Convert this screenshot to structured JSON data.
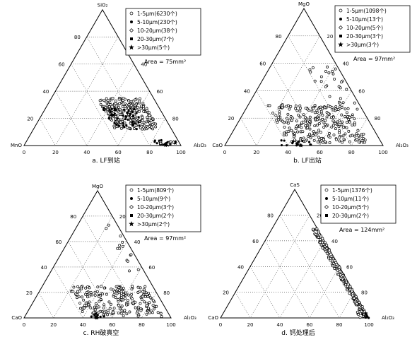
{
  "chart_data": [
    {
      "type": "scatter",
      "subtype": "ternary",
      "caption": "a. LF到站",
      "apex_top": "SiO₂",
      "apex_left": "MnO",
      "apex_right": "Al₂O₃",
      "area_label": "Area = 75mm²",
      "ticks": [
        "0",
        "20",
        "40",
        "60",
        "80",
        "100"
      ],
      "legend": [
        {
          "label": "1-5μm(6230个)",
          "marker": "circle-open"
        },
        {
          "label": "5-10μm(230个)",
          "marker": "circle-filled"
        },
        {
          "label": "10-20μm(38个)",
          "marker": "diamond-open"
        },
        {
          "label": "20-30μm(7个)",
          "marker": "square-filled"
        },
        {
          "label": ">30μm(5个)",
          "marker": "star"
        }
      ],
      "clusters": [
        {
          "marker": "circle-open",
          "n": 260,
          "left": [
            8,
            36
          ],
          "top": [
            12,
            35
          ]
        },
        {
          "marker": "circle-filled",
          "n": 45,
          "left": [
            16,
            36
          ],
          "top": [
            12,
            28
          ]
        },
        {
          "marker": "circle-filled",
          "n": 14,
          "left": [
            1,
            16
          ],
          "top": [
            0,
            4
          ]
        },
        {
          "marker": "star",
          "n": 5,
          "left": [
            2,
            14
          ],
          "top": [
            0,
            2
          ]
        },
        {
          "marker": "diamond-open",
          "n": 8,
          "left": [
            2,
            15
          ],
          "top": [
            0,
            3
          ]
        }
      ]
    },
    {
      "type": "scatter",
      "subtype": "ternary",
      "caption": "b. LF出站",
      "apex_top": "MgO",
      "apex_left": "CaO",
      "apex_right": "Al₂O₃",
      "area_label": "Area = 97mm²",
      "ticks": [
        "0",
        "20",
        "40",
        "60",
        "80",
        "100"
      ],
      "legend": [
        {
          "label": "1-5μm(1098个)",
          "marker": "circle-open"
        },
        {
          "label": "5-10μm(13个)",
          "marker": "circle-filled"
        },
        {
          "label": "10-20μm(5个)",
          "marker": "diamond-open"
        },
        {
          "label": "20-30μm(3个)",
          "marker": "square-filled"
        },
        {
          "label": ">30μm(3个)",
          "marker": "star"
        }
      ],
      "clusters": [
        {
          "marker": "circle-open",
          "n": 260,
          "left": [
            8,
            60
          ],
          "top": [
            2,
            30
          ]
        },
        {
          "marker": "circle-open",
          "n": 30,
          "left": [
            2,
            20
          ],
          "top": [
            25,
            60
          ]
        },
        {
          "marker": "circle-filled",
          "n": 13,
          "left": [
            45,
            65
          ],
          "top": [
            0,
            4
          ]
        },
        {
          "marker": "star",
          "n": 3,
          "left": [
            50,
            60
          ],
          "top": [
            0,
            2
          ]
        }
      ]
    },
    {
      "type": "scatter",
      "subtype": "ternary",
      "caption": "c. RH破真空",
      "apex_top": "MgO",
      "apex_left": "CaO",
      "apex_right": "Al₂O₃",
      "area_label": "Area = 97mm²",
      "ticks": [
        "0",
        "20",
        "40",
        "60",
        "80",
        "100"
      ],
      "legend": [
        {
          "label": "1-5μm(809个)",
          "marker": "circle-open"
        },
        {
          "label": "5-10μm(9个)",
          "marker": "circle-filled"
        },
        {
          "label": "10-20μm(3个)",
          "marker": "diamond-open"
        },
        {
          "label": "20-30μm(2个)",
          "marker": "square-filled"
        },
        {
          "label": ">30μm(2个)",
          "marker": "star"
        }
      ],
      "clusters": [
        {
          "marker": "circle-open",
          "n": 230,
          "left": [
            5,
            58
          ],
          "top": [
            1,
            25
          ]
        },
        {
          "marker": "circle-open",
          "n": 14,
          "left": [
            2,
            10
          ],
          "top": [
            35,
            75
          ]
        },
        {
          "marker": "circle-filled",
          "n": 9,
          "left": [
            42,
            58
          ],
          "top": [
            0,
            4
          ]
        },
        {
          "marker": "star",
          "n": 2,
          "left": [
            48,
            56
          ],
          "top": [
            0,
            2
          ]
        }
      ]
    },
    {
      "type": "scatter",
      "subtype": "ternary",
      "caption": "d. 钙处理后",
      "apex_top": "CaS",
      "apex_left": "CaO",
      "apex_right": "Al₂O₃",
      "area_label": "Area = 124mm²",
      "ticks": [
        "0",
        "20",
        "40",
        "60",
        "80",
        "100"
      ],
      "legend": [
        {
          "label": "1-5μm(1376个)",
          "marker": "circle-open"
        },
        {
          "label": "5-10μm(11个)",
          "marker": "circle-filled"
        },
        {
          "label": "10-20μm(5个)",
          "marker": "diamond-open"
        },
        {
          "label": "20-30μm(2个)",
          "marker": "square-filled"
        }
      ],
      "clusters": [
        {
          "marker": "circle-open",
          "n": 170,
          "left": [
            0,
            4
          ],
          "top": [
            5,
            70
          ]
        },
        {
          "marker": "circle-open",
          "n": 12,
          "left": [
            0,
            6
          ],
          "top": [
            0,
            6
          ]
        },
        {
          "marker": "circle-filled",
          "n": 6,
          "left": [
            0,
            3
          ],
          "top": [
            0,
            4
          ]
        }
      ]
    }
  ]
}
